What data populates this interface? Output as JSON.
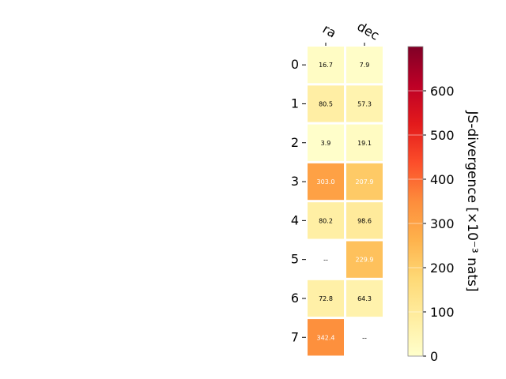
{
  "chart_data": {
    "type": "heatmap",
    "columns": [
      "ra",
      "dec"
    ],
    "rows": [
      "0",
      "1",
      "2",
      "3",
      "4",
      "5",
      "6",
      "7"
    ],
    "values": [
      [
        16.7,
        7.9
      ],
      [
        80.5,
        57.3
      ],
      [
        3.9,
        19.1
      ],
      [
        303.0,
        207.9
      ],
      [
        80.2,
        98.6
      ],
      [
        null,
        229.9
      ],
      [
        72.8,
        64.3
      ],
      [
        342.4,
        null
      ]
    ],
    "cell_labels": [
      [
        "16.7",
        "7.9"
      ],
      [
        "80.5",
        "57.3"
      ],
      [
        "3.9",
        "19.1"
      ],
      [
        "303.0",
        "207.9"
      ],
      [
        "80.2",
        "98.6"
      ],
      [
        "--",
        "229.9"
      ],
      [
        "72.8",
        "64.3"
      ],
      [
        "342.4",
        "--"
      ]
    ],
    "colorbar": {
      "label": "JS-divergence [×10⁻³ nats]",
      "range": [
        0,
        700
      ],
      "ticks": [
        "0",
        "100",
        "200",
        "300",
        "400",
        "500",
        "600"
      ],
      "colormap": "YlOrRd"
    }
  }
}
